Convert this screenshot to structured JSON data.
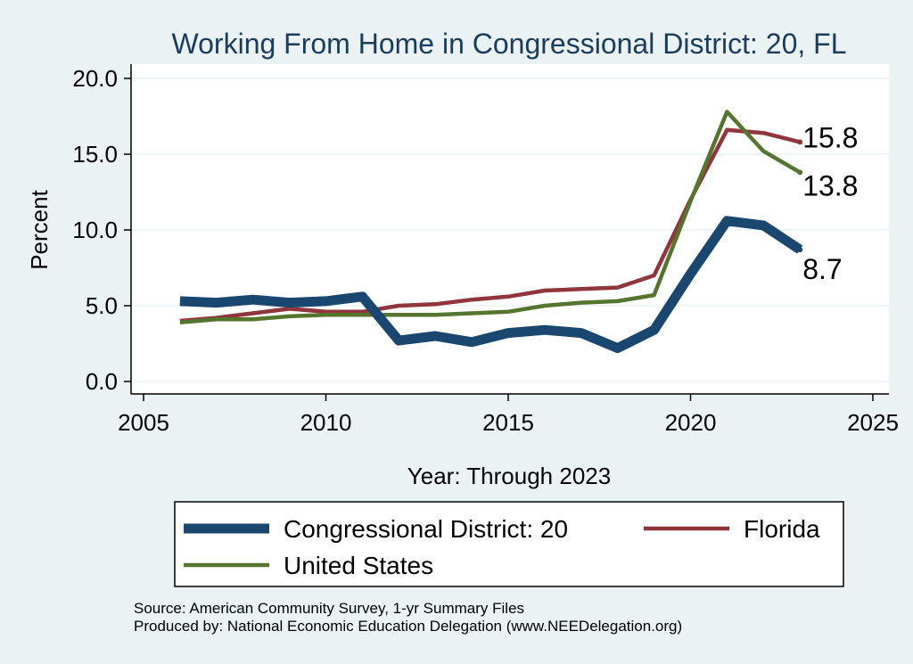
{
  "chart_data": {
    "type": "line",
    "title": "Working From Home in Congressional District: 20, FL",
    "xlabel": "Year: Through 2023",
    "ylabel": "Percent",
    "xlim": [
      2005,
      2025
    ],
    "ylim": [
      0,
      20
    ],
    "x_ticks": [
      "2005",
      "2010",
      "2015",
      "2020",
      "2025"
    ],
    "y_ticks": [
      "0.0",
      "5.0",
      "10.0",
      "15.0",
      "20.0"
    ],
    "grid": true,
    "legend_position": "bottom",
    "x": [
      2006,
      2007,
      2008,
      2009,
      2010,
      2011,
      2012,
      2013,
      2014,
      2015,
      2016,
      2017,
      2018,
      2019,
      2020,
      2021,
      2022,
      2023
    ],
    "series": [
      {
        "name": "Congressional District: 20",
        "color": "#1a476f",
        "values": [
          5.3,
          5.2,
          5.4,
          5.2,
          5.3,
          5.6,
          2.7,
          3.0,
          2.6,
          3.2,
          3.4,
          3.2,
          2.2,
          3.4,
          7.1,
          10.6,
          10.3,
          8.7
        ],
        "end_label": "8.7"
      },
      {
        "name": "Florida",
        "color": "#90353b",
        "values": [
          4.0,
          4.2,
          4.5,
          4.8,
          4.6,
          4.6,
          5.0,
          5.1,
          5.4,
          5.6,
          6.0,
          6.1,
          6.2,
          7.0,
          12.0,
          16.6,
          16.4,
          15.8
        ],
        "end_label": "15.8"
      },
      {
        "name": "United States",
        "color": "#55752f",
        "values": [
          3.9,
          4.1,
          4.1,
          4.3,
          4.4,
          4.4,
          4.4,
          4.4,
          4.5,
          4.6,
          5.0,
          5.2,
          5.3,
          5.7,
          11.9,
          17.8,
          15.2,
          13.8
        ],
        "end_label": "13.8"
      }
    ]
  },
  "source_line1": "Source: American Community Survey, 1-yr Summary Files",
  "source_line2": "Produced by: National Economic Education Delegation (www.NEEDelegation.org)"
}
